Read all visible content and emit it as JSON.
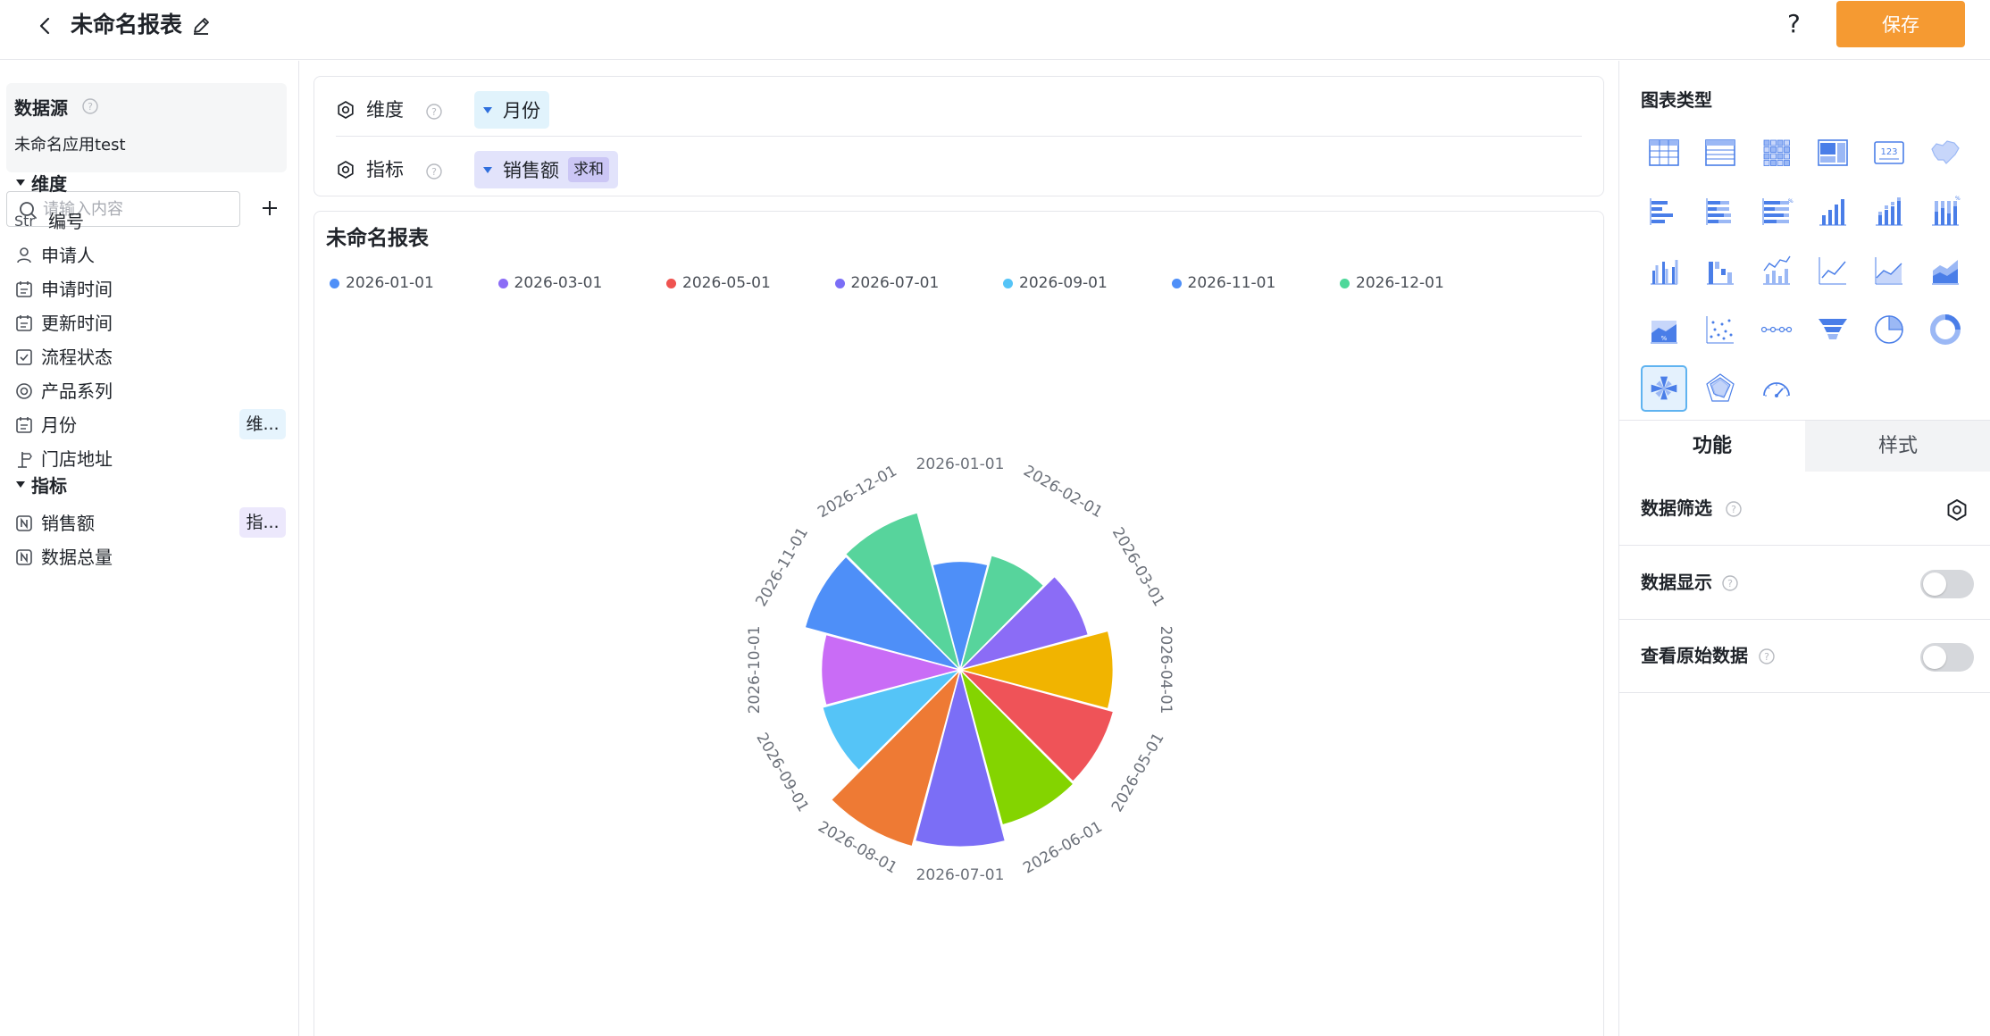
{
  "header": {
    "title": "未命名报表",
    "help_glyph": "?",
    "save_label": "保存"
  },
  "sidebar": {
    "datasource_title": "数据源",
    "datasource_name": "未命名应用test",
    "search_placeholder": "请输入内容",
    "dim_group_title": "维度",
    "metric_group_title": "指标",
    "dimensions": [
      {
        "icon": "string-type-icon",
        "icon_text": "Str",
        "label": "编号"
      },
      {
        "icon": "person-icon",
        "label": "申请人"
      },
      {
        "icon": "calendar-icon",
        "label": "申请时间"
      },
      {
        "icon": "calendar-icon",
        "label": "更新时间"
      },
      {
        "icon": "checkbox-icon",
        "label": "流程状态"
      },
      {
        "icon": "radio-icon",
        "label": "产品系列"
      },
      {
        "icon": "calendar-icon",
        "label": "月份",
        "tag": "维..."
      },
      {
        "icon": "location-icon",
        "label": "门店地址"
      }
    ],
    "metrics": [
      {
        "icon": "number-icon",
        "label": "销售额",
        "tag": "指..."
      },
      {
        "icon": "number-icon",
        "label": "数据总量"
      }
    ]
  },
  "config": {
    "dimension_label": "维度",
    "dimension_value": "月份",
    "metric_label": "指标",
    "metric_value": "销售额",
    "metric_agg": "求和"
  },
  "chart_data": {
    "type": "rose",
    "title": "未命名报表",
    "legend": [
      "2026-01-01",
      "2026-03-01",
      "2026-05-01",
      "2026-07-01",
      "2026-09-01",
      "2026-11-01",
      "2026-12-01"
    ],
    "legend_colors": [
      "#4e8ff8",
      "#8b6cf6",
      "#ef5350",
      "#7b6ef6",
      "#55c4f7",
      "#4e8ff8",
      "#4ed89a"
    ],
    "categories": [
      "2026-01-01",
      "2026-02-01",
      "2026-03-01",
      "2026-04-01",
      "2026-05-01",
      "2026-06-01",
      "2026-07-01",
      "2026-08-01",
      "2026-09-01",
      "2026-10-01",
      "2026-11-01",
      "2026-12-01"
    ],
    "values": [
      54,
      59,
      66,
      76,
      79,
      80,
      88,
      91,
      71,
      69,
      80,
      81
    ],
    "colors": [
      "#4e8ff8",
      "#57d49c",
      "#8b6cf6",
      "#f1b400",
      "#ef5358",
      "#84d400",
      "#7b6ef6",
      "#ee7a34",
      "#55c4f7",
      "#c96cf6",
      "#4e8ff8",
      "#57d49c"
    ]
  },
  "right_panel": {
    "chart_type_title": "图表类型",
    "chart_types": [
      "table",
      "detail-table",
      "pivot-table",
      "cross-table",
      "number-card",
      "map",
      "bar-horizontal",
      "bar-horizontal-stacked",
      "bar-horizontal-percent",
      "column",
      "column-stacked",
      "column-percent",
      "column-group",
      "waterfall",
      "line-column",
      "line",
      "area",
      "area-stacked",
      "area-percent",
      "scatter",
      "timeline",
      "funnel",
      "pie",
      "donut",
      "rose",
      "radar",
      "gauge"
    ],
    "selected_type": "rose",
    "tab_function": "功能",
    "tab_style": "样式",
    "settings": {
      "filter_label": "数据筛选",
      "show_data_label": "数据显示",
      "raw_data_label": "查看原始数据"
    }
  }
}
